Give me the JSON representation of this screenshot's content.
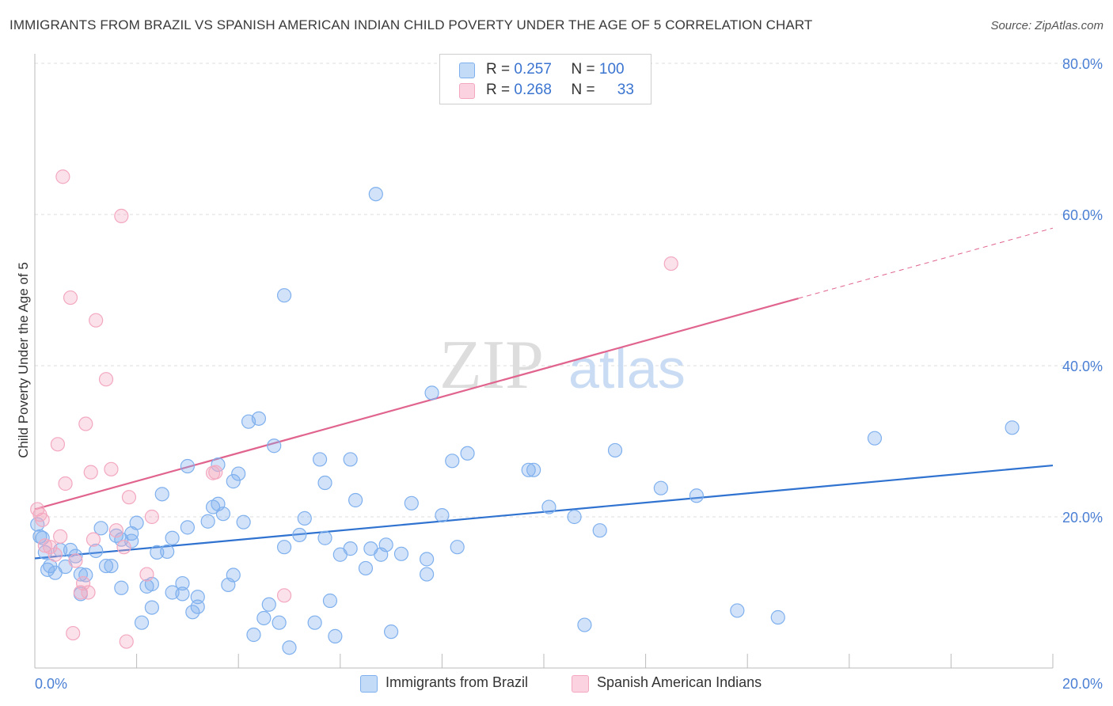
{
  "title": "IMMIGRANTS FROM BRAZIL VS SPANISH AMERICAN INDIAN CHILD POVERTY UNDER THE AGE OF 5 CORRELATION CHART",
  "source": "Source: ZipAtlas.com",
  "watermark": {
    "zip": "ZIP",
    "atlas": "atlas"
  },
  "stats": [
    {
      "r_label": "R =",
      "r_value": "0.257",
      "n_label": "N =",
      "n_value": "100",
      "color": "#7fb0ee"
    },
    {
      "r_label": "R =",
      "r_value": "0.268",
      "n_label": "N =",
      "n_value": "33",
      "color": "#f3a8c0"
    }
  ],
  "legend": [
    {
      "label": "Immigrants from Brazil",
      "color": "#7fb0ee"
    },
    {
      "label": "Spanish American Indians",
      "color": "#f3a8c0"
    }
  ],
  "chart_data": {
    "type": "scatter",
    "title": "IMMIGRANTS FROM BRAZIL VS SPANISH AMERICAN INDIAN CHILD POVERTY UNDER THE AGE OF 5 CORRELATION CHART",
    "xlabel": "",
    "ylabel": "Child Poverty Under the Age of 5",
    "xlim": [
      0,
      20
    ],
    "ylim": [
      0,
      80
    ],
    "x_tick_labels": [
      "0.0%",
      "20.0%"
    ],
    "y_tick_labels": [
      "20.0%",
      "40.0%",
      "60.0%",
      "80.0%"
    ],
    "y_ticks": [
      20,
      40,
      60,
      80
    ],
    "grid": true,
    "legend_position": "bottom",
    "series": [
      {
        "name": "Immigrants from Brazil",
        "color": "#7fb0ee",
        "line_color": "#2f72d0",
        "trend": {
          "x": [
            0,
            20
          ],
          "y": [
            14.5,
            26.8
          ]
        },
        "points": [
          [
            0.1,
            17.4
          ],
          [
            0.2,
            15.3
          ],
          [
            0.3,
            13.5
          ],
          [
            0.4,
            12.6
          ],
          [
            0.5,
            15.6
          ],
          [
            0.6,
            13.4
          ],
          [
            0.7,
            15.6
          ],
          [
            0.8,
            14.8
          ],
          [
            0.9,
            12.4
          ],
          [
            0.9,
            9.8
          ],
          [
            1.0,
            12.3
          ],
          [
            1.2,
            15.5
          ],
          [
            1.3,
            18.5
          ],
          [
            1.4,
            13.5
          ],
          [
            1.5,
            13.5
          ],
          [
            1.6,
            17.5
          ],
          [
            1.7,
            17.0
          ],
          [
            1.7,
            10.6
          ],
          [
            1.9,
            17.8
          ],
          [
            1.9,
            16.8
          ],
          [
            2.0,
            19.2
          ],
          [
            2.1,
            6.0
          ],
          [
            2.2,
            10.8
          ],
          [
            2.3,
            11.1
          ],
          [
            2.3,
            8.0
          ],
          [
            2.4,
            15.3
          ],
          [
            2.5,
            23.0
          ],
          [
            2.6,
            15.4
          ],
          [
            2.7,
            10.0
          ],
          [
            2.7,
            17.2
          ],
          [
            2.9,
            9.8
          ],
          [
            2.9,
            11.2
          ],
          [
            3.0,
            18.6
          ],
          [
            3.0,
            26.7
          ],
          [
            3.1,
            7.4
          ],
          [
            3.2,
            8.1
          ],
          [
            3.2,
            9.4
          ],
          [
            3.4,
            19.4
          ],
          [
            3.5,
            21.3
          ],
          [
            3.6,
            21.7
          ],
          [
            3.6,
            26.9
          ],
          [
            3.7,
            20.4
          ],
          [
            3.8,
            11.0
          ],
          [
            3.9,
            12.3
          ],
          [
            3.9,
            24.7
          ],
          [
            4.0,
            25.7
          ],
          [
            4.1,
            19.3
          ],
          [
            4.2,
            32.6
          ],
          [
            4.3,
            4.4
          ],
          [
            4.4,
            33.0
          ],
          [
            4.5,
            6.6
          ],
          [
            4.6,
            8.4
          ],
          [
            4.7,
            29.4
          ],
          [
            4.8,
            6.0
          ],
          [
            4.9,
            16.0
          ],
          [
            4.9,
            49.3
          ],
          [
            5.0,
            2.7
          ],
          [
            5.2,
            17.6
          ],
          [
            5.3,
            19.8
          ],
          [
            5.5,
            6.0
          ],
          [
            5.6,
            27.6
          ],
          [
            5.7,
            17.2
          ],
          [
            5.7,
            24.5
          ],
          [
            5.8,
            8.9
          ],
          [
            5.9,
            4.2
          ],
          [
            6.0,
            15.0
          ],
          [
            6.2,
            15.8
          ],
          [
            6.2,
            27.6
          ],
          [
            6.3,
            22.2
          ],
          [
            6.5,
            13.2
          ],
          [
            6.6,
            15.8
          ],
          [
            6.7,
            62.7
          ],
          [
            6.8,
            15.0
          ],
          [
            6.9,
            16.3
          ],
          [
            7.0,
            4.8
          ],
          [
            7.2,
            15.1
          ],
          [
            7.4,
            21.8
          ],
          [
            7.7,
            14.4
          ],
          [
            7.7,
            12.4
          ],
          [
            7.8,
            36.4
          ],
          [
            8.0,
            20.2
          ],
          [
            8.2,
            27.4
          ],
          [
            8.3,
            16.0
          ],
          [
            8.5,
            28.4
          ],
          [
            9.7,
            26.2
          ],
          [
            9.8,
            26.2
          ],
          [
            10.1,
            21.3
          ],
          [
            10.6,
            20.0
          ],
          [
            10.8,
            5.7
          ],
          [
            11.1,
            18.2
          ],
          [
            11.4,
            28.8
          ],
          [
            12.3,
            23.8
          ],
          [
            13.0,
            22.8
          ],
          [
            13.8,
            7.6
          ],
          [
            14.6,
            6.7
          ],
          [
            16.5,
            30.4
          ],
          [
            19.2,
            31.8
          ],
          [
            0.05,
            19.0
          ],
          [
            0.15,
            17.2
          ],
          [
            0.25,
            13.0
          ]
        ]
      },
      {
        "name": "Spanish American Indians",
        "color": "#f3a8c0",
        "line_color": "#e0648e",
        "trend": {
          "x": [
            0,
            15
          ],
          "y": [
            21.0,
            48.9
          ]
        },
        "trend_dashed": {
          "x": [
            15,
            20
          ],
          "y": [
            48.9,
            58.2
          ]
        },
        "points": [
          [
            0.05,
            21.0
          ],
          [
            0.1,
            20.3
          ],
          [
            0.15,
            19.6
          ],
          [
            0.2,
            16.2
          ],
          [
            0.3,
            16.0
          ],
          [
            0.4,
            15.0
          ],
          [
            0.45,
            29.6
          ],
          [
            0.5,
            17.4
          ],
          [
            0.55,
            65.0
          ],
          [
            0.6,
            24.4
          ],
          [
            0.7,
            49.0
          ],
          [
            0.75,
            4.6
          ],
          [
            0.8,
            14.2
          ],
          [
            0.9,
            10.0
          ],
          [
            0.95,
            11.2
          ],
          [
            1.0,
            32.3
          ],
          [
            1.05,
            10.0
          ],
          [
            1.1,
            25.9
          ],
          [
            1.15,
            17.0
          ],
          [
            1.2,
            46.0
          ],
          [
            1.4,
            38.2
          ],
          [
            1.5,
            26.3
          ],
          [
            1.6,
            18.2
          ],
          [
            1.7,
            59.8
          ],
          [
            1.75,
            16.0
          ],
          [
            1.8,
            3.5
          ],
          [
            1.85,
            22.6
          ],
          [
            2.2,
            12.4
          ],
          [
            2.3,
            20.0
          ],
          [
            3.5,
            25.8
          ],
          [
            3.55,
            25.9
          ],
          [
            4.9,
            9.6
          ],
          [
            12.5,
            53.5
          ]
        ]
      }
    ]
  }
}
